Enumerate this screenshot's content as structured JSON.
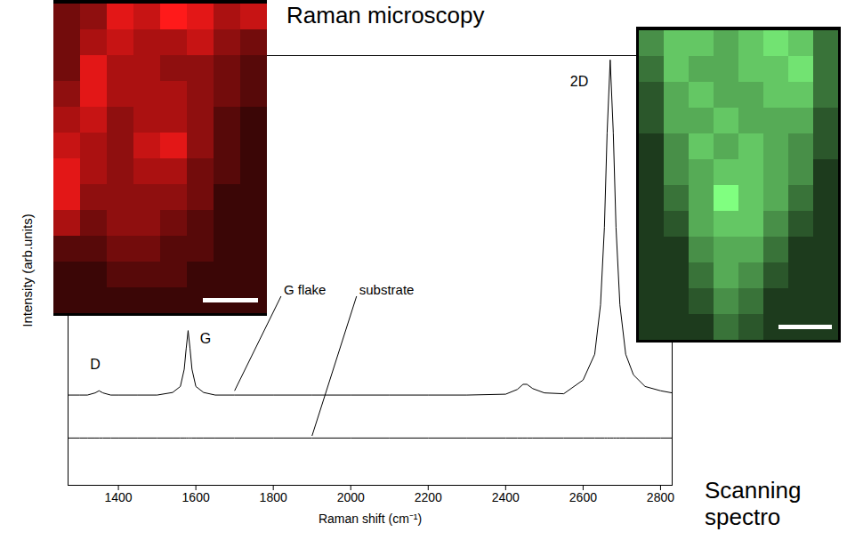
{
  "chart_data": {
    "type": "line",
    "title": "Raman microscopy",
    "x_label": "Raman shift (cm⁻¹)",
    "y_label": "Intensity (arb.units)",
    "xlim": [
      1270,
      2830
    ],
    "xticks": [
      1400,
      1600,
      1800,
      2000,
      2200,
      2400,
      2600,
      2800
    ],
    "ylim": [
      0,
      100
    ],
    "yticks": [],
    "tick_labels": "x",
    "x": [
      1270,
      1300,
      1320,
      1340,
      1350,
      1360,
      1380,
      1400,
      1450,
      1500,
      1540,
      1560,
      1570,
      1575,
      1580,
      1585,
      1590,
      1600,
      1620,
      1650,
      1700,
      1800,
      1900,
      2000,
      2100,
      2200,
      2300,
      2400,
      2430,
      2445,
      2455,
      2470,
      2500,
      2550,
      2600,
      2630,
      2645,
      2655,
      2662,
      2670,
      2678,
      2685,
      2695,
      2710,
      2730,
      2760,
      2800,
      2830
    ],
    "series": [
      {
        "name": "G flake",
        "color": "#000000",
        "values": [
          21,
          21,
          21,
          21.5,
          22,
          21.5,
          21,
          21,
          21,
          21,
          21.6,
          23,
          27,
          31.8,
          36,
          31.8,
          27,
          23,
          21.6,
          21,
          21,
          21,
          21,
          21,
          21,
          21,
          21,
          21.2,
          22.3,
          23.5,
          23.5,
          22.5,
          21.5,
          21.3,
          24.5,
          30.5,
          42,
          60,
          82,
          99,
          82,
          60,
          42,
          30.5,
          25.7,
          23,
          22,
          21.5
        ],
        "label_at": [
          1820,
          44
        ],
        "label_target": [
          1700,
          22
        ]
      },
      {
        "name": "substrate",
        "color": "#000000",
        "values": [
          11,
          11,
          11,
          11,
          11,
          11,
          11,
          11,
          11,
          11,
          11,
          11,
          11,
          11,
          11,
          11,
          11,
          11,
          11,
          11,
          11,
          11,
          11,
          11,
          11,
          11,
          11,
          11,
          11,
          11,
          11,
          11,
          11,
          11,
          11,
          11,
          11,
          11,
          11,
          11,
          11,
          11,
          11,
          11,
          11,
          11,
          11,
          11
        ],
        "label_at": [
          2015,
          44
        ],
        "label_target": [
          1900,
          11.5
        ]
      }
    ],
    "annotations": [
      {
        "text": "D",
        "x": 1340,
        "y": 28
      },
      {
        "text": "G",
        "x": 1625,
        "y": 34
      },
      {
        "text": "2D",
        "x": 2590,
        "y": 94
      }
    ],
    "maps": [
      {
        "color": "#ff1a1a",
        "cells": [
          [
            3,
            4,
            7,
            6,
            8,
            7,
            5,
            6
          ],
          [
            3,
            5,
            6,
            5,
            5,
            6,
            4,
            3
          ],
          [
            3,
            7,
            5,
            5,
            4,
            4,
            3,
            2
          ],
          [
            4,
            7,
            5,
            5,
            5,
            4,
            3,
            2
          ],
          [
            5,
            6,
            4,
            5,
            5,
            4,
            2,
            1
          ],
          [
            6,
            5,
            4,
            6,
            7,
            4,
            2,
            1
          ],
          [
            7,
            5,
            4,
            5,
            5,
            3,
            2,
            1
          ],
          [
            7,
            4,
            4,
            4,
            4,
            3,
            1,
            1
          ],
          [
            5,
            3,
            4,
            4,
            3,
            2,
            1,
            1
          ],
          [
            2,
            2,
            3,
            3,
            2,
            2,
            1,
            1
          ],
          [
            1,
            1,
            2,
            2,
            2,
            1,
            1,
            1
          ],
          [
            1,
            1,
            1,
            1,
            1,
            1,
            1,
            1
          ]
        ]
      },
      {
        "color": "#80ff80",
        "cells": [
          [
            4,
            6,
            6,
            5,
            6,
            7,
            6,
            3
          ],
          [
            3,
            6,
            5,
            5,
            6,
            6,
            7,
            3
          ],
          [
            2,
            5,
            6,
            5,
            5,
            6,
            6,
            3
          ],
          [
            2,
            5,
            5,
            6,
            5,
            5,
            5,
            2
          ],
          [
            1,
            4,
            6,
            5,
            6,
            5,
            4,
            2
          ],
          [
            1,
            4,
            5,
            6,
            6,
            5,
            4,
            1
          ],
          [
            1,
            3,
            5,
            8,
            6,
            5,
            3,
            1
          ],
          [
            1,
            2,
            5,
            6,
            6,
            4,
            2,
            1
          ],
          [
            1,
            1,
            4,
            5,
            5,
            3,
            1,
            1
          ],
          [
            1,
            1,
            3,
            5,
            4,
            2,
            1,
            1
          ],
          [
            1,
            1,
            2,
            4,
            3,
            1,
            1,
            1
          ],
          [
            1,
            1,
            1,
            3,
            2,
            1,
            1,
            1
          ]
        ]
      }
    ],
    "caption_lines": [
      "Scanning",
      "spectro"
    ]
  }
}
